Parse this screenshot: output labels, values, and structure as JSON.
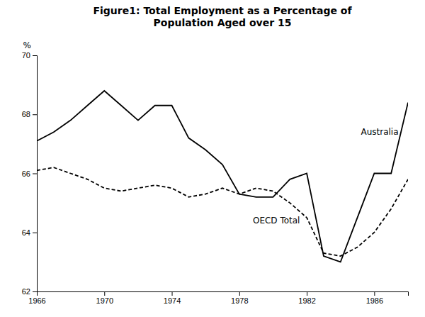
{
  "chart_data": {
    "type": "line",
    "title": "Figure1: Total Employment as a Percentage of\nPopulation Aged over 15",
    "y_label": "%",
    "x": [
      1966,
      1967,
      1968,
      1969,
      1970,
      1971,
      1972,
      1973,
      1974,
      1975,
      1976,
      1977,
      1978,
      1979,
      1980,
      1981,
      1982,
      1983,
      1984,
      1985,
      1986,
      1987,
      1988
    ],
    "series": [
      {
        "name": "Australia",
        "color": "#000000",
        "line_style": "solid",
        "values": [
          67.1,
          67.4,
          67.8,
          68.3,
          68.8,
          68.3,
          67.8,
          68.3,
          68.3,
          67.2,
          66.8,
          66.3,
          65.3,
          65.2,
          65.2,
          65.8,
          66.0,
          63.2,
          63.0,
          64.5,
          66.0,
          66.0,
          68.4
        ]
      },
      {
        "name": "OECD Total",
        "color": "#000000",
        "line_style": "dashed",
        "values": [
          66.1,
          66.2,
          66.0,
          65.8,
          65.5,
          65.4,
          65.5,
          65.6,
          65.5,
          65.2,
          65.3,
          65.5,
          65.3,
          65.5,
          65.4,
          65.0,
          64.5,
          63.3,
          63.2,
          63.5,
          64.0,
          64.8,
          65.8
        ]
      }
    ],
    "xlim": [
      1966,
      1988
    ],
    "ylim": [
      62,
      70
    ],
    "xticks": [
      1966,
      1970,
      1974,
      1978,
      1982,
      1986
    ],
    "yticks": [
      62,
      64,
      66,
      68,
      70
    ],
    "grid": false
  }
}
